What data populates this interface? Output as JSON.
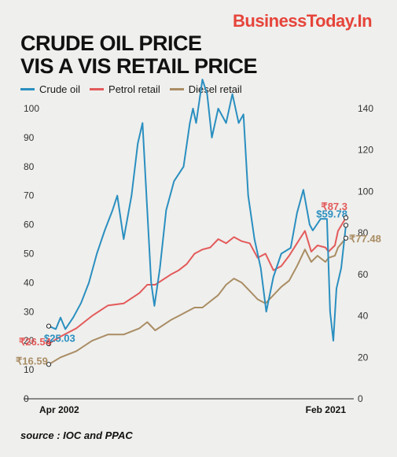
{
  "header": {
    "brand": "BusinessToday.In",
    "title_line1": "CRUDE OIL PRICE",
    "title_line2": "VIS A VIS RETAIL PRICE"
  },
  "footer": {
    "source": "source : IOC and PPAC"
  },
  "colors": {
    "crude": "#2a8fc0",
    "petrol": "#e35a5a",
    "diesel": "#a98d64",
    "brand": "#e6443a",
    "background": "#efefed"
  },
  "chart_data": {
    "type": "line",
    "title": "CRUDE OIL PRICE VIS A VIS RETAIL PRICE",
    "x_labels": {
      "start": "Apr 2002",
      "end": "Feb 2021"
    },
    "x_range": [
      2002.25,
      2021.1
    ],
    "grid": false,
    "legend": "top-left",
    "y_left": {
      "ticks": [
        "0",
        "10",
        "20",
        "30",
        "40",
        "50",
        "60",
        "70",
        "80",
        "90",
        "100"
      ],
      "range": [
        0,
        100
      ]
    },
    "y_right": {
      "ticks": [
        "0",
        "20",
        "40",
        "60",
        "80",
        "100",
        "120",
        "140"
      ],
      "range": [
        0,
        140
      ]
    },
    "series": [
      {
        "name": "Crude oil",
        "axis": "left",
        "color": "#2a8fc0",
        "x": [
          2002.25,
          2002.7,
          2003.0,
          2003.3,
          2003.8,
          2004.3,
          2004.8,
          2005.3,
          2005.8,
          2006.3,
          2006.6,
          2007.0,
          2007.5,
          2007.9,
          2008.2,
          2008.5,
          2008.75,
          2008.95,
          2009.3,
          2009.7,
          2010.2,
          2010.8,
          2011.2,
          2011.4,
          2011.6,
          2012.0,
          2012.3,
          2012.6,
          2013.0,
          2013.5,
          2013.9,
          2014.3,
          2014.6,
          2014.9,
          2015.3,
          2015.7,
          2016.05,
          2016.5,
          2017.0,
          2017.6,
          2018.0,
          2018.4,
          2018.8,
          2019.0,
          2019.5,
          2019.9,
          2020.1,
          2020.3,
          2020.5,
          2020.8,
          2021.1
        ],
        "values": [
          25.03,
          24,
          28,
          24,
          28,
          33,
          40,
          50,
          58,
          65,
          70,
          55,
          70,
          88,
          95,
          65,
          40,
          32,
          45,
          65,
          75,
          80,
          95,
          100,
          95,
          110,
          105,
          90,
          100,
          95,
          105,
          95,
          98,
          70,
          55,
          45,
          30,
          42,
          50,
          52,
          64,
          72,
          60,
          58,
          62,
          62,
          30,
          20,
          38,
          45,
          59.78
        ]
      },
      {
        "name": "Petrol retail",
        "axis": "right",
        "color": "#e35a5a",
        "x": [
          2002.25,
          2003.0,
          2004.0,
          2005.0,
          2006.0,
          2007.0,
          2008.0,
          2008.5,
          2009.0,
          2010.0,
          2010.5,
          2011.0,
          2011.5,
          2012.0,
          2012.5,
          2013.0,
          2013.5,
          2014.0,
          2014.5,
          2015.0,
          2015.5,
          2016.0,
          2016.5,
          2017.0,
          2017.5,
          2018.0,
          2018.5,
          2018.9,
          2019.3,
          2019.8,
          2020.0,
          2020.4,
          2020.6,
          2021.1
        ],
        "values": [
          26.54,
          30,
          34,
          40,
          45,
          46,
          51,
          55,
          55,
          60,
          62,
          65,
          70,
          72,
          73,
          77,
          75,
          78,
          76,
          75,
          68,
          70,
          62,
          64,
          69,
          75,
          81,
          71,
          74,
          73,
          71,
          74,
          81,
          87.3
        ]
      },
      {
        "name": "Diesel retail",
        "axis": "right",
        "color": "#a98d64",
        "x": [
          2002.25,
          2003.0,
          2004.0,
          2005.0,
          2006.0,
          2007.0,
          2008.0,
          2008.5,
          2009.0,
          2010.0,
          2010.5,
          2011.0,
          2011.5,
          2012.0,
          2012.5,
          2013.0,
          2013.5,
          2014.0,
          2014.5,
          2015.0,
          2015.5,
          2016.0,
          2016.5,
          2017.0,
          2017.5,
          2018.0,
          2018.5,
          2018.9,
          2019.3,
          2019.8,
          2020.0,
          2020.4,
          2020.6,
          2021.1
        ],
        "values": [
          16.59,
          20,
          23,
          28,
          31,
          31,
          34,
          37,
          33,
          38,
          40,
          42,
          44,
          44,
          47,
          50,
          55,
          58,
          56,
          52,
          48,
          46,
          50,
          54,
          57,
          64,
          72,
          66,
          69,
          66,
          68,
          69,
          73,
          77.48
        ]
      }
    ],
    "annotations": {
      "crude_start": "$25.03",
      "crude_end": "$59.78",
      "petrol_start": "₹26.54",
      "petrol_end": "₹87.3",
      "diesel_start": "₹16.59",
      "diesel_end": "₹77.48"
    }
  }
}
